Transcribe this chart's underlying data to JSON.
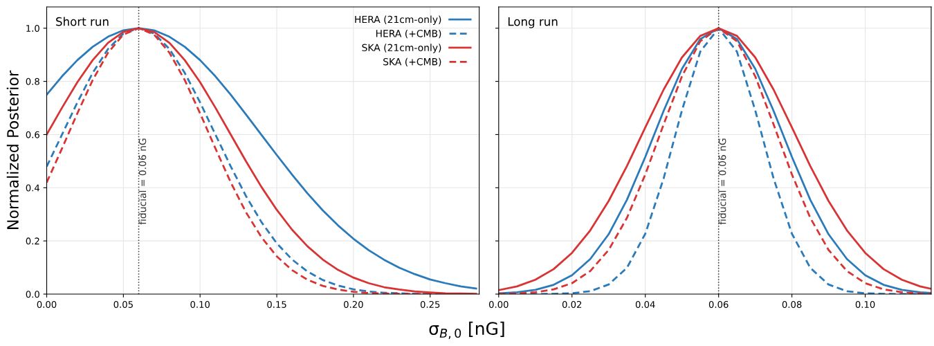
{
  "chart_data": [
    {
      "type": "line",
      "annotations": [
        "Short run"
      ],
      "ylabel": "Normalized Posterior",
      "xlabel": "σ$_{B,0}$ [nG]",
      "x": [
        0,
        0.01,
        0.02,
        0.03,
        0.04,
        0.05,
        0.06,
        0.07,
        0.08,
        0.09,
        0.1,
        0.11,
        0.12,
        0.13,
        0.14,
        0.15,
        0.16,
        0.17,
        0.18,
        0.19,
        0.2,
        0.21,
        0.22,
        0.23,
        0.24,
        0.25,
        0.26,
        0.27,
        0.28
      ],
      "series": [
        {
          "name": "HERA (21cm-only)",
          "color": "#2b7bba",
          "line_style": "solid",
          "values": [
            0.75,
            0.819,
            0.88,
            0.93,
            0.968,
            0.992,
            1,
            0.992,
            0.968,
            0.93,
            0.88,
            0.819,
            0.75,
            0.675,
            0.599,
            0.523,
            0.449,
            0.379,
            0.315,
            0.258,
            0.208,
            0.165,
            0.129,
            0.099,
            0.075,
            0.055,
            0.041,
            0.029,
            0.021
          ]
        },
        {
          "name": "HERA (+CMB)",
          "color": "#2b7bba",
          "line_style": "dashed",
          "values": [
            0.48,
            0.6,
            0.721,
            0.832,
            0.922,
            0.98,
            1,
            0.98,
            0.922,
            0.832,
            0.721,
            0.6,
            0.48,
            0.368,
            0.271,
            0.191,
            0.13,
            0.085,
            0.053,
            0.032,
            0.018,
            0.01,
            0.005,
            0.003,
            0.001,
            0.001,
            null,
            null,
            null
          ]
        },
        {
          "name": "SKA (21cm-only)",
          "color": "#d83434",
          "line_style": "solid",
          "values": [
            0.6,
            0.701,
            0.797,
            0.88,
            0.945,
            0.986,
            1,
            0.986,
            0.945,
            0.88,
            0.797,
            0.701,
            0.6,
            0.499,
            0.403,
            0.317,
            0.242,
            0.18,
            0.13,
            0.091,
            0.062,
            0.041,
            0.026,
            0.017,
            0.01,
            0.006,
            0.003,
            0.002,
            0.001
          ]
        },
        {
          "name": "SKA (+CMB)",
          "color": "#d83434",
          "line_style": "dashed",
          "values": [
            0.42,
            0.548,
            0.68,
            0.805,
            0.908,
            0.976,
            1,
            0.976,
            0.908,
            0.805,
            0.68,
            0.548,
            0.42,
            0.307,
            0.214,
            0.142,
            0.09,
            0.054,
            0.031,
            0.017,
            0.009,
            0.004,
            0.002,
            0.001,
            0,
            0,
            0,
            0,
            0
          ]
        }
      ],
      "xlim": [
        0,
        0.282
      ],
      "ylim": [
        0,
        1.08
      ],
      "xticks": [
        {
          "value": 0,
          "label": "0.00"
        },
        {
          "value": 0.05,
          "label": "0.05"
        },
        {
          "value": 0.1,
          "label": "0.10"
        },
        {
          "value": 0.15,
          "label": "0.15"
        },
        {
          "value": 0.2,
          "label": "0.20"
        },
        {
          "value": 0.25,
          "label": "0.25"
        }
      ],
      "yticks": [
        {
          "value": 0,
          "label": "0.0"
        },
        0.2,
        0.4,
        0.6,
        0.8,
        {
          "value": 1,
          "label": "1.0"
        }
      ],
      "ref_lines": [
        {
          "axis": "x",
          "value": 0.06,
          "label": "fiducial = 0.06 nG",
          "color": "#333333",
          "line_style": "dotted"
        }
      ],
      "grid": true,
      "legend": "top right"
    },
    {
      "type": "line",
      "annotations": [
        "Long run"
      ],
      "x": [
        0,
        0.005,
        0.01,
        0.015,
        0.02,
        0.025,
        0.03,
        0.035,
        0.04,
        0.045,
        0.05,
        0.055,
        0.06,
        0.065,
        0.07,
        0.075,
        0.08,
        0.085,
        0.09,
        0.095,
        0.1,
        0.105,
        0.11,
        0.115,
        0.118
      ],
      "series": [
        {
          "color": "#2b7bba",
          "line_style": "solid",
          "values": [
            0.003,
            0.007,
            0.016,
            0.035,
            0.071,
            0.132,
            0.225,
            0.355,
            0.516,
            0.689,
            0.847,
            0.959,
            1,
            0.959,
            0.847,
            0.689,
            0.516,
            0.355,
            0.225,
            0.132,
            0.071,
            0.035,
            0.016,
            0.007,
            0.004
          ]
        },
        {
          "color": "#2b7bba",
          "line_style": "dashed",
          "values": [
            0,
            0,
            0,
            0.001,
            0.003,
            0.011,
            0.036,
            0.099,
            0.227,
            0.435,
            0.691,
            0.912,
            1,
            0.912,
            0.691,
            0.435,
            0.227,
            0.099,
            0.036,
            0.011,
            0.003,
            0.001,
            0,
            0,
            0
          ]
        },
        {
          "color": "#d83434",
          "line_style": "solid",
          "values": [
            0.015,
            0.029,
            0.054,
            0.094,
            0.155,
            0.24,
            0.35,
            0.482,
            0.627,
            0.769,
            0.89,
            0.971,
            1,
            0.971,
            0.89,
            0.769,
            0.627,
            0.482,
            0.35,
            0.24,
            0.155,
            0.094,
            0.054,
            0.029,
            0.02
          ]
        },
        {
          "color": "#d83434",
          "line_style": "dashed",
          "values": [
            0.001,
            0.002,
            0.007,
            0.018,
            0.041,
            0.087,
            0.166,
            0.287,
            0.45,
            0.638,
            0.819,
            0.951,
            1,
            0.951,
            0.819,
            0.638,
            0.45,
            0.287,
            0.166,
            0.087,
            0.041,
            0.018,
            0.007,
            0.002,
            0.001
          ]
        }
      ],
      "xlim": [
        0,
        0.118
      ],
      "ylim": [
        0,
        1.08
      ],
      "xticks": [
        {
          "value": 0,
          "label": "0.00"
        },
        0.02,
        0.04,
        0.06,
        0.08,
        {
          "value": 0.1,
          "label": "0.10"
        }
      ],
      "yticks": [
        0,
        0.2,
        0.4,
        0.6,
        0.8,
        1.0
      ],
      "ref_lines": [
        {
          "axis": "x",
          "value": 0.06,
          "label": "fiducial = 0.06 nG",
          "color": "#333333",
          "line_style": "dotted"
        }
      ],
      "grid": true,
      "tick_labels": "x"
    }
  ]
}
